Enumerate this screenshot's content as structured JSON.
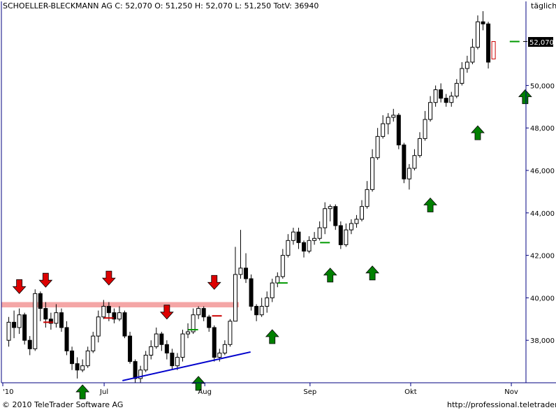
{
  "chart_data": {
    "type": "candlestick",
    "title": "SCHOELLER-BLECKMANN AG C: 52,070 O: 51,250 H: 52,070 L: 51,250 TotV: 36940",
    "period_label": "täglich",
    "last_price_label": "52,070",
    "y_ticks": [
      "38,000",
      "40,000",
      "42,000",
      "44,000",
      "46,000",
      "48,000",
      "50,000"
    ],
    "y_tick_values": [
      38,
      40,
      42,
      44,
      46,
      48,
      50
    ],
    "ylim": [
      36.0,
      53.5
    ],
    "last_price": 52.07,
    "x_labels": [
      {
        "label": "'10",
        "day": 0
      },
      {
        "label": "Jul",
        "day": 22
      },
      {
        "label": "Aug",
        "day": 44
      },
      {
        "label": "Sep",
        "day": 67
      },
      {
        "label": "Okt",
        "day": 89
      },
      {
        "label": "Nov",
        "day": 111
      }
    ],
    "resistance_zone": [
      39.55,
      39.8
    ],
    "trendline": [
      [
        26,
        36.1
      ],
      [
        54,
        37.45
      ]
    ],
    "candles": [
      [
        38.0,
        38.85,
        39.1,
        37.7
      ],
      [
        38.85,
        38.6,
        39.4,
        38.1
      ],
      [
        38.6,
        39.2,
        39.5,
        38.3
      ],
      [
        39.2,
        38.0,
        39.3,
        37.8
      ],
      [
        38.0,
        37.6,
        38.2,
        37.3
      ],
      [
        37.6,
        40.2,
        40.4,
        37.5
      ],
      [
        40.2,
        39.5,
        40.3,
        38.9
      ],
      [
        39.5,
        39.0,
        39.8,
        38.6
      ],
      [
        39.0,
        38.8,
        39.3,
        38.5
      ],
      [
        38.8,
        39.3,
        39.7,
        38.6
      ],
      [
        39.3,
        38.6,
        39.5,
        38.4
      ],
      [
        38.6,
        37.5,
        38.9,
        37.3
      ],
      [
        37.5,
        36.9,
        37.7,
        36.6
      ],
      [
        36.9,
        36.6,
        37.2,
        36.2
      ],
      [
        36.6,
        36.8,
        37.1,
        36.5
      ],
      [
        36.8,
        37.5,
        37.7,
        36.7
      ],
      [
        37.5,
        38.2,
        38.4,
        37.4
      ],
      [
        38.2,
        39.1,
        39.4,
        37.9
      ],
      [
        39.1,
        39.6,
        39.9,
        39.0
      ],
      [
        39.6,
        39.3,
        39.8,
        38.9
      ],
      [
        39.3,
        39.0,
        39.5,
        38.8
      ],
      [
        39.0,
        39.3,
        39.6,
        38.9
      ],
      [
        39.3,
        38.2,
        39.4,
        38.1
      ],
      [
        38.2,
        37.0,
        38.4,
        36.9
      ],
      [
        37.0,
        36.2,
        37.1,
        36.0
      ],
      [
        36.2,
        36.6,
        36.8,
        36.0
      ],
      [
        36.6,
        37.3,
        37.5,
        36.5
      ],
      [
        37.3,
        37.7,
        38.0,
        37.1
      ],
      [
        37.7,
        38.3,
        38.6,
        37.6
      ],
      [
        38.3,
        37.8,
        38.4,
        37.5
      ],
      [
        37.8,
        37.4,
        38.0,
        37.1
      ],
      [
        37.4,
        36.8,
        37.6,
        36.6
      ],
      [
        36.8,
        37.2,
        37.4,
        36.6
      ],
      [
        37.2,
        38.3,
        38.5,
        37.0
      ],
      [
        38.3,
        38.4,
        38.8,
        38.1
      ],
      [
        38.4,
        39.2,
        39.5,
        38.3
      ],
      [
        39.2,
        39.5,
        39.6,
        39.0
      ],
      [
        39.5,
        39.1,
        39.6,
        38.9
      ],
      [
        39.1,
        38.6,
        39.2,
        38.4
      ],
      [
        38.6,
        37.2,
        38.7,
        37.0
      ],
      [
        37.2,
        37.4,
        37.6,
        37.0
      ],
      [
        37.4,
        37.8,
        38.0,
        37.3
      ],
      [
        37.8,
        38.9,
        39.0,
        37.7
      ],
      [
        38.9,
        41.1,
        42.4,
        38.9
      ],
      [
        41.1,
        41.4,
        43.2,
        40.9
      ],
      [
        41.4,
        40.9,
        42.1,
        40.7
      ],
      [
        40.9,
        39.6,
        41.1,
        39.4
      ],
      [
        39.6,
        39.2,
        39.7,
        38.9
      ],
      [
        39.2,
        39.6,
        40.0,
        39.1
      ],
      [
        39.6,
        40.0,
        40.3,
        39.3
      ],
      [
        40.0,
        40.7,
        40.9,
        39.8
      ],
      [
        40.7,
        41.0,
        41.2,
        40.5
      ],
      [
        41.0,
        42.0,
        42.3,
        40.9
      ],
      [
        42.0,
        42.7,
        43.0,
        41.9
      ],
      [
        42.7,
        43.1,
        43.3,
        42.5
      ],
      [
        43.1,
        42.6,
        43.3,
        42.3
      ],
      [
        42.6,
        42.2,
        42.7,
        41.9
      ],
      [
        42.2,
        42.7,
        42.9,
        42.1
      ],
      [
        42.7,
        42.8,
        43.1,
        42.5
      ],
      [
        42.8,
        43.3,
        43.6,
        42.7
      ],
      [
        43.3,
        44.2,
        44.5,
        43.0
      ],
      [
        44.2,
        44.3,
        44.4,
        43.6
      ],
      [
        44.3,
        43.4,
        44.4,
        43.2
      ],
      [
        43.4,
        42.5,
        43.6,
        42.3
      ],
      [
        42.5,
        43.2,
        43.5,
        42.4
      ],
      [
        43.2,
        43.5,
        43.7,
        43.0
      ],
      [
        43.5,
        43.7,
        43.9,
        43.3
      ],
      [
        43.7,
        44.3,
        44.6,
        43.6
      ],
      [
        44.3,
        45.1,
        45.5,
        44.2
      ],
      [
        45.1,
        46.6,
        47.0,
        45.0
      ],
      [
        46.6,
        47.6,
        48.0,
        46.5
      ],
      [
        47.6,
        48.2,
        48.6,
        47.5
      ],
      [
        48.2,
        48.5,
        48.7,
        47.7
      ],
      [
        48.5,
        48.6,
        48.9,
        48.3
      ],
      [
        48.6,
        47.2,
        48.7,
        47.0
      ],
      [
        47.2,
        45.6,
        47.3,
        45.4
      ],
      [
        45.6,
        46.1,
        46.3,
        45.1
      ],
      [
        46.1,
        46.7,
        47.0,
        46.0
      ],
      [
        46.7,
        47.5,
        47.8,
        46.6
      ],
      [
        47.5,
        48.4,
        48.8,
        47.4
      ],
      [
        48.4,
        49.2,
        49.5,
        48.3
      ],
      [
        49.2,
        49.8,
        50.0,
        49.0
      ],
      [
        49.8,
        49.4,
        50.1,
        49.2
      ],
      [
        49.4,
        49.2,
        49.6,
        49.0
      ],
      [
        49.2,
        49.5,
        49.7,
        49.0
      ],
      [
        49.5,
        50.1,
        50.3,
        49.4
      ],
      [
        50.1,
        50.8,
        51.1,
        50.0
      ],
      [
        50.8,
        51.1,
        51.4,
        50.6
      ],
      [
        51.1,
        51.8,
        52.2,
        51.0
      ],
      [
        51.8,
        53.0,
        53.3,
        51.7
      ],
      [
        53.0,
        52.9,
        53.5,
        52.6
      ],
      [
        52.9,
        51.1,
        53.0,
        50.8
      ],
      [
        51.25,
        52.07,
        52.07,
        51.25
      ]
    ],
    "candle_x_days": [
      1,
      2,
      3,
      4,
      5,
      6,
      7,
      8,
      9,
      10,
      11,
      12,
      13,
      14,
      15,
      16,
      17,
      18,
      19,
      20,
      21,
      22,
      23,
      24,
      25,
      26,
      27,
      28,
      29,
      30,
      31,
      32,
      33,
      34,
      35,
      36,
      37,
      38,
      39,
      40,
      41,
      42,
      43,
      44,
      45,
      46,
      47,
      48,
      49,
      50,
      51,
      52,
      53,
      54,
      55,
      56,
      57,
      58,
      59,
      60,
      61,
      62,
      63,
      64,
      65,
      66,
      67,
      68,
      69,
      70,
      71,
      72,
      73,
      74,
      75,
      76,
      77,
      78,
      79,
      80,
      81,
      82,
      83,
      84,
      85,
      86,
      87,
      88,
      89,
      90,
      91,
      92,
      93
    ],
    "signals_sell": [
      {
        "day": 3,
        "price": 40.2
      },
      {
        "day": 8,
        "price": 40.5
      },
      {
        "day": 20,
        "price": 40.6
      },
      {
        "day": 31,
        "price": 39.0
      },
      {
        "day": 40,
        "price": 40.4
      }
    ],
    "signals_buy": [
      {
        "day": 15,
        "price": 35.9
      },
      {
        "day": 37,
        "price": 36.3
      },
      {
        "day": 51,
        "price": 38.5
      },
      {
        "day": 62,
        "price": 41.4
      },
      {
        "day": 70,
        "price": 41.5
      },
      {
        "day": 81,
        "price": 44.7
      },
      {
        "day": 90,
        "price": 48.1
      },
      {
        "day": 99,
        "price": 49.8
      }
    ],
    "marker_lines": [
      {
        "day": 8.5,
        "price": 38.85,
        "color": "#cc0000"
      },
      {
        "day": 20,
        "price": 39.05,
        "color": "#cc0000"
      },
      {
        "day": 36,
        "price": 38.5,
        "color": "#009900"
      },
      {
        "day": 40.5,
        "price": 39.15,
        "color": "#cc0000"
      },
      {
        "day": 53,
        "price": 40.7,
        "color": "#009900"
      },
      {
        "day": 61,
        "price": 42.6,
        "color": "#009900"
      },
      {
        "day": 97,
        "price": 52.07,
        "color": "#009900"
      }
    ],
    "colors": {
      "up": "#ffffff",
      "down": "#000000",
      "zone": "#f4a6a6",
      "trend": "#0000cc",
      "buy": "#008000",
      "sell": "#dd0000",
      "axis": "#000080"
    }
  },
  "footer": {
    "copyright": "© 2010 TeleTrader Software AG",
    "url": "http://professional.teletrader.com/"
  }
}
